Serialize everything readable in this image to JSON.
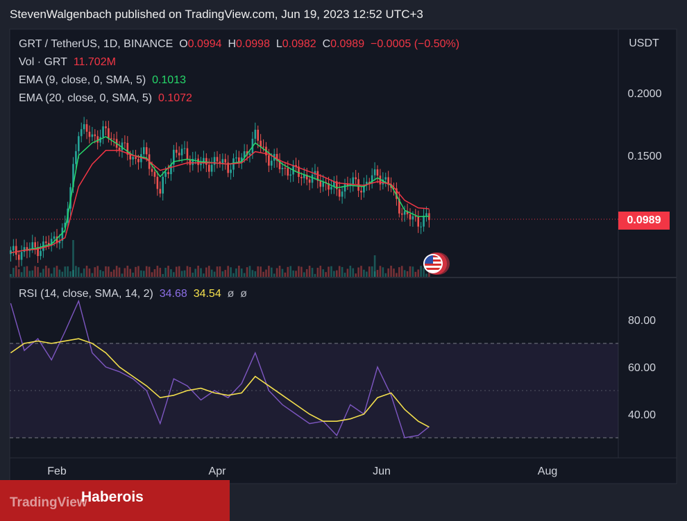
{
  "header": {
    "publish_line": "StevenWalgenbach published on TradingView.com, Jun 19, 2023 12:52 UTC+3"
  },
  "legend": {
    "symbol": "GRT / TetherUS, 1D, BINANCE",
    "o_label": "O",
    "o_value": "0.0994",
    "h_label": "H",
    "h_value": "0.0998",
    "l_label": "L",
    "l_value": "0.0982",
    "c_label": "C",
    "c_value": "0.0989",
    "change": "−0.0005 (−0.50%)",
    "vol_label": "Vol · GRT",
    "vol_value": "11.702M",
    "ema9_label": "EMA (9, close, 0, SMA, 5)",
    "ema9_value": "0.1013",
    "ema20_label": "EMA (20, close, 0, SMA, 5)",
    "ema20_value": "0.1072",
    "rsi_label": "RSI (14, close, SMA, 14, 2)",
    "rsi_value": "34.68",
    "rsi_ma_value": "34.54",
    "rsi_extra1": "ø",
    "rsi_extra2": "ø"
  },
  "price_axis": {
    "currency": "USDT",
    "ticks": [
      "0.2000",
      "0.1500"
    ],
    "last_price": "0.0989"
  },
  "rsi_axis": {
    "ticks": [
      "80.00",
      "60.00",
      "40.00"
    ],
    "band_upper": 70,
    "band_mid": 50,
    "band_lower": 30
  },
  "time_axis": {
    "ticks": [
      "Feb",
      "Apr",
      "Jun",
      "Aug"
    ]
  },
  "colors": {
    "up": "#26a69a",
    "down": "#ef5350",
    "ema9": "#26d86a",
    "ema20": "#f23645",
    "rsi": "#7e57c2",
    "rsi_ma": "#f4e04d",
    "background": "#1e222d"
  },
  "flag_icon": "us-flag-icon",
  "watermark": {
    "logo": "TradingView",
    "text": "Haberois"
  },
  "chart_data": [
    {
      "type": "line",
      "title": "GRT / TetherUS, 1D, BINANCE",
      "ylabel": "USDT",
      "ylim": [
        0.07,
        0.235
      ],
      "x_ticks": [
        "Feb",
        "Apr",
        "Jun",
        "Aug"
      ],
      "x": [
        "2023-01-15",
        "2023-01-20",
        "2023-01-25",
        "2023-01-30",
        "2023-02-04",
        "2023-02-09",
        "2023-02-14",
        "2023-02-19",
        "2023-02-24",
        "2023-03-01",
        "2023-03-06",
        "2023-03-11",
        "2023-03-16",
        "2023-03-21",
        "2023-03-26",
        "2023-03-31",
        "2023-04-05",
        "2023-04-10",
        "2023-04-15",
        "2023-04-20",
        "2023-04-25",
        "2023-04-30",
        "2023-05-05",
        "2023-05-10",
        "2023-05-15",
        "2023-05-20",
        "2023-05-25",
        "2023-05-30",
        "2023-06-04",
        "2023-06-09",
        "2023-06-14",
        "2023-06-18"
      ],
      "series": [
        {
          "name": "GRT / TetherUS",
          "values": [
            0.071,
            0.074,
            0.076,
            0.08,
            0.092,
            0.172,
            0.165,
            0.168,
            0.158,
            0.148,
            0.15,
            0.12,
            0.153,
            0.15,
            0.142,
            0.145,
            0.142,
            0.147,
            0.165,
            0.148,
            0.14,
            0.136,
            0.132,
            0.129,
            0.121,
            0.128,
            0.125,
            0.136,
            0.124,
            0.101,
            0.098,
            0.0989
          ]
        },
        {
          "name": "EMA (9, close, 0, SMA, 5)",
          "values": [
            0.072,
            0.074,
            0.076,
            0.079,
            0.09,
            0.15,
            0.16,
            0.165,
            0.158,
            0.15,
            0.148,
            0.133,
            0.145,
            0.147,
            0.145,
            0.144,
            0.143,
            0.145,
            0.16,
            0.152,
            0.143,
            0.137,
            0.133,
            0.129,
            0.124,
            0.126,
            0.125,
            0.132,
            0.126,
            0.106,
            0.101,
            0.1013
          ]
        },
        {
          "name": "EMA (20, close, 0, SMA, 5)",
          "values": [
            0.072,
            0.074,
            0.075,
            0.078,
            0.084,
            0.125,
            0.143,
            0.154,
            0.154,
            0.15,
            0.147,
            0.138,
            0.141,
            0.144,
            0.144,
            0.144,
            0.143,
            0.144,
            0.153,
            0.151,
            0.145,
            0.141,
            0.137,
            0.133,
            0.128,
            0.127,
            0.126,
            0.129,
            0.127,
            0.114,
            0.108,
            0.1072
          ]
        }
      ],
      "volume": {
        "name": "Vol · GRT",
        "last": "11.702M",
        "spike_dates": [
          "2023-02-07",
          "2023-05-29"
        ]
      }
    },
    {
      "type": "line",
      "title": "RSI (14, close, SMA, 14, 2)",
      "ylim": [
        22,
        95
      ],
      "y_ticks": [
        80,
        60,
        40
      ],
      "bands": [
        70,
        50,
        30
      ],
      "x": [
        "2023-01-15",
        "2023-01-20",
        "2023-01-25",
        "2023-01-30",
        "2023-02-04",
        "2023-02-09",
        "2023-02-14",
        "2023-02-19",
        "2023-02-24",
        "2023-03-01",
        "2023-03-06",
        "2023-03-11",
        "2023-03-16",
        "2023-03-21",
        "2023-03-26",
        "2023-03-31",
        "2023-04-05",
        "2023-04-10",
        "2023-04-15",
        "2023-04-20",
        "2023-04-25",
        "2023-04-30",
        "2023-05-05",
        "2023-05-10",
        "2023-05-15",
        "2023-05-20",
        "2023-05-25",
        "2023-05-30",
        "2023-06-04",
        "2023-06-09",
        "2023-06-14",
        "2023-06-18"
      ],
      "series": [
        {
          "name": "RSI",
          "values": [
            87,
            67,
            72,
            63,
            75,
            88,
            66,
            60,
            58,
            55,
            50,
            36,
            55,
            52,
            46,
            50,
            47,
            53,
            66,
            50,
            44,
            40,
            36,
            37,
            31,
            44,
            40,
            60,
            48,
            30,
            31,
            34.68
          ]
        },
        {
          "name": "RSI-based MA",
          "values": [
            66,
            70,
            71,
            70,
            71,
            72,
            70,
            66,
            60,
            56,
            52,
            47,
            48,
            50,
            51,
            49,
            48,
            49,
            56,
            52,
            48,
            44,
            40,
            37,
            37,
            38,
            40,
            47,
            49,
            42,
            37,
            34.54
          ]
        }
      ]
    }
  ]
}
